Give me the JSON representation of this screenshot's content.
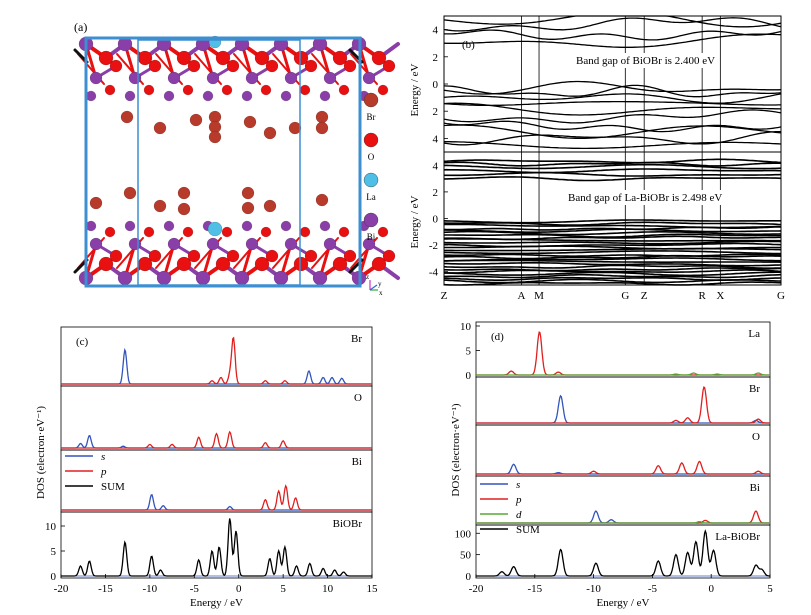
{
  "crystal": {
    "label": "(a)",
    "legend": [
      {
        "name": "Br",
        "color": "#b83a2a"
      },
      {
        "name": "O",
        "color": "#e81010"
      },
      {
        "name": "La",
        "color": "#4fbfe6"
      },
      {
        "name": "Bi",
        "color": "#8a3fa8"
      }
    ],
    "axes": {
      "z": "z",
      "y": "y",
      "x": "x"
    }
  },
  "chart_data": [
    {
      "type": "line",
      "panel": "(b)",
      "subpanels": [
        {
          "annotation": "Band gap of BiOBr is 2.400 eV",
          "ylabel": "Energy / eV",
          "yticks": [
            "4",
            "2",
            "0",
            "2",
            "4"
          ],
          "ylim": [
            -5,
            5
          ]
        },
        {
          "annotation": "Band gap of La-BiOBr is 2.498 eV",
          "ylabel": "Energy / eV",
          "yticks": [
            "4",
            "2",
            "0",
            "-2",
            "-4"
          ],
          "ylim": [
            -5,
            5
          ]
        }
      ],
      "kpoints": [
        "Z",
        "A",
        "M",
        "G",
        "Z",
        "R",
        "X",
        "G"
      ],
      "kpos": [
        0,
        0.23,
        0.282,
        0.538,
        0.594,
        0.766,
        0.82,
        1
      ]
    },
    {
      "type": "line",
      "panel": "(c)",
      "ylabel": "DOS (electron·eV⁻¹)",
      "xlabel": "Energy / eV",
      "xticks": [
        "-20",
        "-15",
        "-10",
        "-5",
        "0",
        "5",
        "10",
        "15"
      ],
      "xlim": [
        -20,
        15
      ],
      "legend": [
        "s",
        "p",
        "SUM"
      ],
      "subpanels": [
        {
          "name": "Br",
          "series": {
            "s": [
              [
                -12.8,
                4.2
              ],
              [
                7.9,
                1.6
              ],
              [
                9.5,
                0.8
              ],
              [
                10.5,
                0.8
              ],
              [
                11.6,
                0.7
              ]
            ],
            "p": [
              [
                -3.0,
                0.4
              ],
              [
                -2.0,
                0.8
              ],
              [
                -1.0,
                1.0
              ],
              [
                -0.6,
                5.6
              ],
              [
                3.0,
                0.4
              ],
              [
                5.2,
                0.4
              ]
            ]
          }
        },
        {
          "name": "O",
          "series": {
            "s": [
              [
                -17.8,
                0.5
              ],
              [
                -16.8,
                1.4
              ],
              [
                -13.0,
                0.2
              ]
            ],
            "p": [
              [
                -10.0,
                0.4
              ],
              [
                -7.5,
                0.4
              ],
              [
                -4.5,
                1.2
              ],
              [
                -2.5,
                1.6
              ],
              [
                -1.0,
                1.8
              ],
              [
                3.0,
                0.6
              ],
              [
                5.0,
                0.8
              ]
            ]
          }
        },
        {
          "name": "Bi",
          "series": {
            "s": [
              [
                -9.8,
                1.8
              ],
              [
                -8.5,
                0.5
              ],
              [
                -1.0,
                0.4
              ]
            ],
            "p": [
              [
                3.0,
                1.2
              ],
              [
                4.5,
                2.2
              ],
              [
                5.3,
                2.8
              ],
              [
                6.4,
                1.4
              ]
            ]
          }
        },
        {
          "name": "BiOBr",
          "yticks": [
            "0",
            "5",
            "10"
          ],
          "ylim": [
            0,
            12
          ],
          "series": {
            "SUM": [
              [
                -17.8,
                2.0
              ],
              [
                -16.8,
                3.0
              ],
              [
                -12.8,
                6.8
              ],
              [
                -9.8,
                4.0
              ],
              [
                -8.8,
                1.2
              ],
              [
                -4.5,
                3.2
              ],
              [
                -3.0,
                5.0
              ],
              [
                -2.2,
                5.8
              ],
              [
                -1.0,
                11.5
              ],
              [
                -0.3,
                9.0
              ],
              [
                3.5,
                3.5
              ],
              [
                4.5,
                5.0
              ],
              [
                5.2,
                5.8
              ],
              [
                6.5,
                2.0
              ],
              [
                8.0,
                2.5
              ],
              [
                9.5,
                1.5
              ],
              [
                10.8,
                1.2
              ],
              [
                11.8,
                0.8
              ]
            ]
          }
        }
      ]
    },
    {
      "type": "line",
      "panel": "(d)",
      "ylabel": "DOS (electron·eV⁻¹)",
      "xlabel": "Energy / eV",
      "xticks": [
        "-20",
        "-15",
        "-10",
        "-5",
        "0",
        "5"
      ],
      "xlim": [
        -20,
        5
      ],
      "legend": [
        "s",
        "p",
        "d",
        "SUM"
      ],
      "subpanels": [
        {
          "name": "La",
          "yticks": [
            "0",
            "5",
            "10"
          ],
          "ylim": [
            0,
            10
          ],
          "series": {
            "p": [
              [
                -17.0,
                0.8
              ],
              [
                -14.6,
                8.8
              ],
              [
                -13.0,
                0.6
              ]
            ],
            "d": [
              [
                -3.0,
                0.2
              ],
              [
                -1.5,
                0.4
              ],
              [
                0.5,
                0.2
              ],
              [
                4.0,
                0.4
              ]
            ]
          }
        },
        {
          "name": "Br",
          "series": {
            "s": [
              [
                -12.8,
                4.2
              ],
              [
                3.8,
                0.4
              ]
            ],
            "p": [
              [
                -3.0,
                0.4
              ],
              [
                -2.0,
                0.8
              ],
              [
                -0.6,
                5.6
              ],
              [
                4.0,
                0.6
              ]
            ]
          }
        },
        {
          "name": "O",
          "series": {
            "s": [
              [
                -16.8,
                1.4
              ],
              [
                -13.0,
                0.2
              ]
            ],
            "p": [
              [
                -10.0,
                0.4
              ],
              [
                -4.5,
                1.2
              ],
              [
                -2.5,
                1.6
              ],
              [
                -1.0,
                1.8
              ],
              [
                4.0,
                0.4
              ]
            ]
          }
        },
        {
          "name": "Bi",
          "series": {
            "s": [
              [
                -9.8,
                1.8
              ],
              [
                -8.5,
                0.5
              ]
            ],
            "p": [
              [
                -0.5,
                0.4
              ],
              [
                3.8,
                1.8
              ]
            ],
            "d": [
              [
                -1.0,
                0.2
              ]
            ]
          }
        },
        {
          "name": "La-BiOBr",
          "yticks": [
            "0",
            "50",
            "100"
          ],
          "ylim": [
            0,
            110
          ],
          "series": {
            "SUM": [
              [
                -17.8,
                10
              ],
              [
                -16.8,
                22
              ],
              [
                -12.8,
                62
              ],
              [
                -9.8,
                30
              ],
              [
                -4.5,
                35
              ],
              [
                -3.0,
                50
              ],
              [
                -2.0,
                55
              ],
              [
                -1.3,
                80
              ],
              [
                -0.5,
                105
              ],
              [
                0.2,
                60
              ],
              [
                3.8,
                25
              ],
              [
                4.3,
                15
              ]
            ]
          }
        }
      ]
    }
  ]
}
